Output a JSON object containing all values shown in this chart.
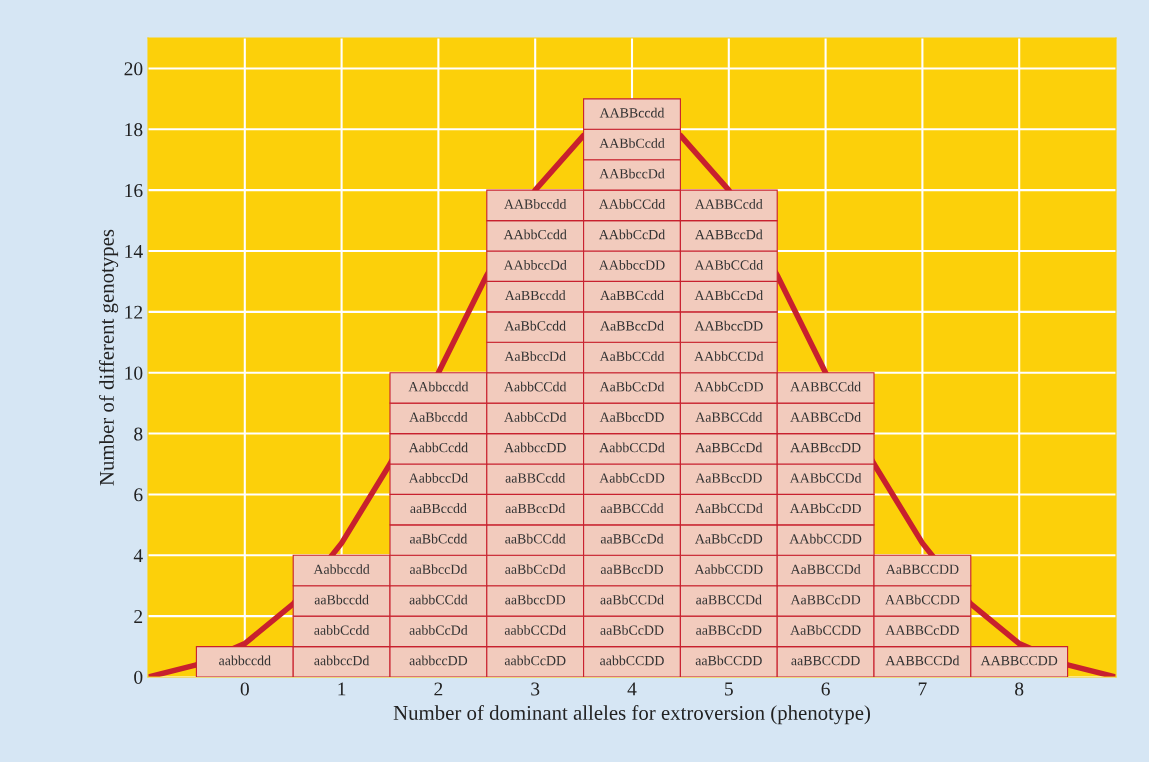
{
  "chart_data": {
    "type": "bar",
    "stacked": true,
    "xlabel": "Number of dominant alleles for extroversion (phenotype)",
    "ylabel": "Number of different genotypes",
    "x": [
      0,
      1,
      2,
      3,
      4,
      5,
      6,
      7,
      8
    ],
    "xlim": [
      -1,
      9
    ],
    "xticks": [
      0,
      1,
      2,
      3,
      4,
      5,
      6,
      7,
      8
    ],
    "ylim": [
      0,
      21
    ],
    "yticks": [
      0,
      2,
      4,
      6,
      8,
      10,
      12,
      14,
      16,
      18,
      20
    ],
    "grid": true,
    "series": [
      {
        "color": "#f2cbbd",
        "values": [
          1,
          1,
          1,
          1,
          1,
          1,
          1,
          1,
          1
        ],
        "value_labels": [
          "aabbccdd",
          "aabbccDd",
          "aabbccDD",
          "aabbCcDD",
          "aabbCCDD",
          "aaBbCCDD",
          "aaBBCCDD",
          "AABBCCDd",
          "AABBCCDD"
        ]
      },
      {
        "color": "#f2cbbd",
        "values": [
          null,
          1,
          1,
          1,
          1,
          1,
          1,
          1,
          null
        ],
        "value_labels": [
          null,
          "aabbCcdd",
          "aabbCcDd",
          "aabbCCDd",
          "aaBbCcDD",
          "aaBBCcDD",
          "AaBbCCDD",
          "AABBCcDD",
          null
        ]
      },
      {
        "color": "#f2cbbd",
        "values": [
          null,
          1,
          1,
          1,
          1,
          1,
          1,
          1,
          null
        ],
        "value_labels": [
          null,
          "aaBbccdd",
          "aabbCCdd",
          "aaBbccDD",
          "aaBbCCDd",
          "aaBBCCDd",
          "AaBBCcDD",
          "AABbCCDD",
          null
        ]
      },
      {
        "color": "#f2cbbd",
        "values": [
          null,
          1,
          1,
          1,
          1,
          1,
          1,
          1,
          null
        ],
        "value_labels": [
          null,
          "Aabbccdd",
          "aaBbccDd",
          "aaBbCcDd",
          "aaBBccDD",
          "AabbCCDD",
          "AaBBCCDd",
          "AaBBCCDD",
          null
        ]
      },
      {
        "color": "#f2cbbd",
        "values": [
          null,
          null,
          1,
          1,
          1,
          1,
          1,
          null,
          null
        ],
        "value_labels": [
          null,
          null,
          "aaBbCcdd",
          "aaBbCCdd",
          "aaBBCcDd",
          "AaBbCcDD",
          "AAbbCCDD",
          null,
          null
        ]
      },
      {
        "color": "#f2cbbd",
        "values": [
          null,
          null,
          1,
          1,
          1,
          1,
          1,
          null,
          null
        ],
        "value_labels": [
          null,
          null,
          "aaBBccdd",
          "aaBBccDd",
          "aaBBCCdd",
          "AaBbCCDd",
          "AABbCcDD",
          null,
          null
        ]
      },
      {
        "color": "#f2cbbd",
        "values": [
          null,
          null,
          1,
          1,
          1,
          1,
          1,
          null,
          null
        ],
        "value_labels": [
          null,
          null,
          "AabbccDd",
          "aaBBCcdd",
          "AabbCcDD",
          "AaBBccDD",
          "AABbCCDd",
          null,
          null
        ]
      },
      {
        "color": "#f2cbbd",
        "values": [
          null,
          null,
          1,
          1,
          1,
          1,
          1,
          null,
          null
        ],
        "value_labels": [
          null,
          null,
          "AabbCcdd",
          "AabbccDD",
          "AabbCCDd",
          "AaBBCcDd",
          "AABBccDD",
          null,
          null
        ]
      },
      {
        "color": "#f2cbbd",
        "values": [
          null,
          null,
          1,
          1,
          1,
          1,
          1,
          null,
          null
        ],
        "value_labels": [
          null,
          null,
          "AaBbccdd",
          "AabbCcDd",
          "AaBbccDD",
          "AaBBCCdd",
          "AABBCcDd",
          null,
          null
        ]
      },
      {
        "color": "#f2cbbd",
        "values": [
          null,
          null,
          1,
          1,
          1,
          1,
          1,
          null,
          null
        ],
        "value_labels": [
          null,
          null,
          "AAbbccdd",
          "AabbCCdd",
          "AaBbCcDd",
          "AAbbCcDD",
          "AABBCCdd",
          null,
          null
        ]
      },
      {
        "color": "#f2cbbd",
        "values": [
          null,
          null,
          null,
          1,
          1,
          1,
          null,
          null,
          null
        ],
        "value_labels": [
          null,
          null,
          null,
          "AaBbccDd",
          "AaBbCCdd",
          "AAbbCCDd",
          null,
          null,
          null
        ]
      },
      {
        "color": "#f2cbbd",
        "values": [
          null,
          null,
          null,
          1,
          1,
          1,
          null,
          null,
          null
        ],
        "value_labels": [
          null,
          null,
          null,
          "AaBbCcdd",
          "AaBBccDd",
          "AABbccDD",
          null,
          null,
          null
        ]
      },
      {
        "color": "#f2cbbd",
        "values": [
          null,
          null,
          null,
          1,
          1,
          1,
          null,
          null,
          null
        ],
        "value_labels": [
          null,
          null,
          null,
          "AaBBccdd",
          "AaBBCcdd",
          "AABbCcDd",
          null,
          null,
          null
        ]
      },
      {
        "color": "#f2cbbd",
        "values": [
          null,
          null,
          null,
          1,
          1,
          1,
          null,
          null,
          null
        ],
        "value_labels": [
          null,
          null,
          null,
          "AAbbccDd",
          "AAbbccDD",
          "AABbCCdd",
          null,
          null,
          null
        ]
      },
      {
        "color": "#f2cbbd",
        "values": [
          null,
          null,
          null,
          1,
          1,
          1,
          null,
          null,
          null
        ],
        "value_labels": [
          null,
          null,
          null,
          "AAbbCcdd",
          "AAbbCcDd",
          "AABBccDd",
          null,
          null,
          null
        ]
      },
      {
        "color": "#f2cbbd",
        "values": [
          null,
          null,
          null,
          1,
          1,
          1,
          null,
          null,
          null
        ],
        "value_labels": [
          null,
          null,
          null,
          "AABbccdd",
          "AAbbCCdd",
          "AABBCcdd",
          null,
          null,
          null
        ]
      },
      {
        "color": "#f2cbbd",
        "values": [
          null,
          null,
          null,
          null,
          1,
          null,
          null,
          null,
          null
        ],
        "value_labels": [
          null,
          null,
          null,
          null,
          "AABbccDd",
          null,
          null,
          null,
          null
        ]
      },
      {
        "color": "#f2cbbd",
        "values": [
          null,
          null,
          null,
          null,
          1,
          null,
          null,
          null,
          null
        ],
        "value_labels": [
          null,
          null,
          null,
          null,
          "AABbCcdd",
          null,
          null,
          null,
          null
        ]
      },
      {
        "color": "#f2cbbd",
        "values": [
          null,
          null,
          null,
          null,
          1,
          null,
          null,
          null,
          null
        ],
        "value_labels": [
          null,
          null,
          null,
          null,
          "AABBccdd",
          null,
          null,
          null,
          null
        ]
      },
      {
        "type": "line",
        "color": "#c8202e",
        "x": [
          -1,
          -0.5,
          0,
          0.5,
          1,
          1.5,
          2,
          2.5,
          3,
          3.5,
          4,
          4.5,
          5,
          5.5,
          6,
          6.5,
          7,
          7.5,
          8,
          8.5,
          9
        ],
        "values": [
          0,
          0.4,
          1.1,
          2.4,
          4.4,
          7.0,
          10.0,
          13.2,
          16.0,
          17.8,
          null,
          17.8,
          16.0,
          13.2,
          10.0,
          7.0,
          4.4,
          2.4,
          1.1,
          0.4,
          0
        ]
      }
    ]
  }
}
